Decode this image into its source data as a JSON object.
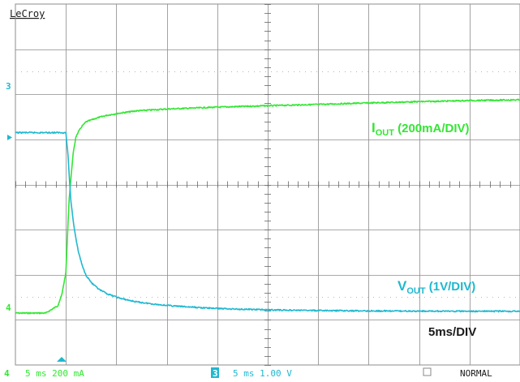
{
  "brand": "LeCroy",
  "annotations": {
    "iout_main": "I",
    "iout_sub": "OUT",
    "iout_rest": " (200mA/DIV)",
    "vout_main": "V",
    "vout_sub": "OUT",
    "vout_rest": " (1V/DIV)",
    "timebase": "5ms/DIV"
  },
  "markers": {
    "ch3": "3",
    "ch4": "4"
  },
  "status_bar": {
    "ch4_num": "4",
    "ch4_setting": "5 ms 200 mA",
    "ch3_num": "3",
    "ch3_setting": "5 ms 1.00 V",
    "mode": "NORMAL"
  },
  "colors": {
    "iout": "#33e633",
    "vout": "#1fb8d0",
    "grid": "#8c8c8c",
    "text": "#1a1a1a"
  },
  "chart_data": {
    "type": "line",
    "title": "",
    "xlabel": "",
    "ylabel": "",
    "xlim": [
      0,
      50
    ],
    "x_units": "ms",
    "grid": true,
    "divisions": {
      "x": 10,
      "y": 8
    },
    "series": [
      {
        "name": "IOUT (200mA/DIV)",
        "units": "mA",
        "x": [
          0,
          3.0,
          4.2,
          4.6,
          5.0,
          5.3,
          5.7,
          6.0,
          6.5,
          7.0,
          8.0,
          9.0,
          10.0,
          12.0,
          15.0,
          20.0,
          25.0,
          30.0,
          35.0,
          40.0,
          45.0,
          50.0
        ],
        "values": [
          0,
          0,
          40,
          100,
          220,
          600,
          860,
          960,
          1010,
          1040,
          1060,
          1075,
          1085,
          1100,
          1110,
          1120,
          1128,
          1135,
          1143,
          1150,
          1156,
          1160
        ]
      },
      {
        "name": "VOUT (1V/DIV)",
        "units": "V",
        "x": [
          0,
          5.0,
          5.2,
          5.5,
          5.8,
          6.2,
          6.6,
          7.0,
          7.6,
          8.3,
          9.2,
          10.5,
          12.0,
          14.0,
          16.0,
          19.0,
          22.0,
          26.0,
          30.0,
          35.0,
          40.0,
          45.0,
          50.0
        ],
        "values": [
          5.0,
          5.0,
          4.4,
          3.1,
          2.4,
          1.75,
          1.33,
          1.05,
          0.82,
          0.65,
          0.52,
          0.4,
          0.31,
          0.24,
          0.19,
          0.14,
          0.11,
          0.085,
          0.07,
          0.06,
          0.055,
          0.05,
          0.05
        ]
      }
    ]
  }
}
